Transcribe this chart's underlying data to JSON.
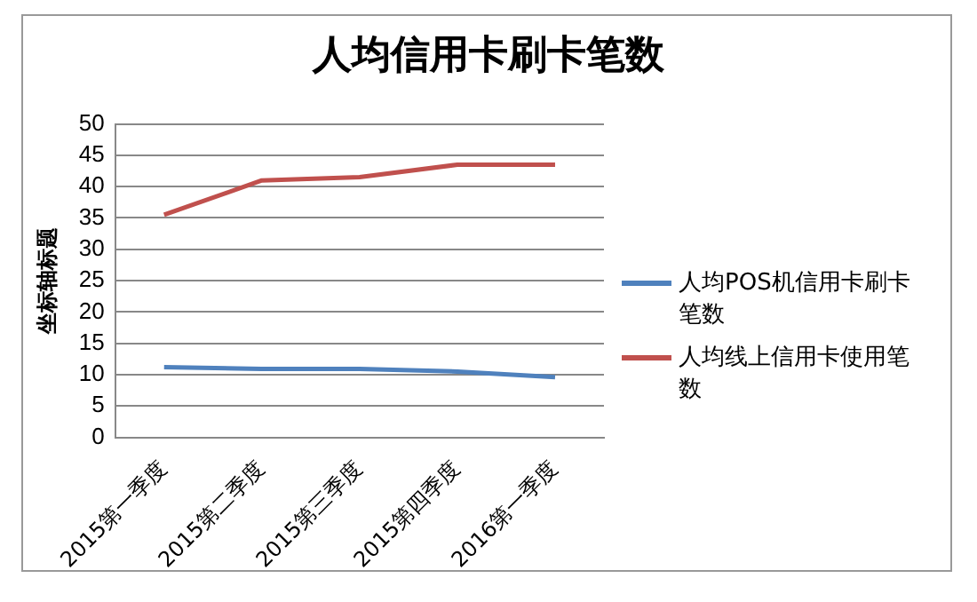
{
  "chart_data": {
    "type": "line",
    "title": "人均信用卡刷卡笔数",
    "ylabel": "坐标轴标题",
    "categories": [
      "2015第一季度",
      "2015第二季度",
      "2015第三季度",
      "2015第四季度",
      "2016第一季度"
    ],
    "series": [
      {
        "name": "人均POS机信用卡刷卡笔数",
        "color": "#4f81bd",
        "values": [
          11.2,
          10.9,
          10.9,
          10.5,
          9.6
        ]
      },
      {
        "name": "人均线上信用卡使用笔数",
        "color": "#c0504d",
        "values": [
          35.5,
          41,
          41.5,
          43.5,
          43.5
        ]
      }
    ],
    "ylim": [
      0,
      50
    ],
    "yticks": [
      0,
      5,
      10,
      15,
      20,
      25,
      30,
      35,
      40,
      45,
      50
    ],
    "grid": "y",
    "legend": "right",
    "marker": "none",
    "line_style": "solid"
  }
}
